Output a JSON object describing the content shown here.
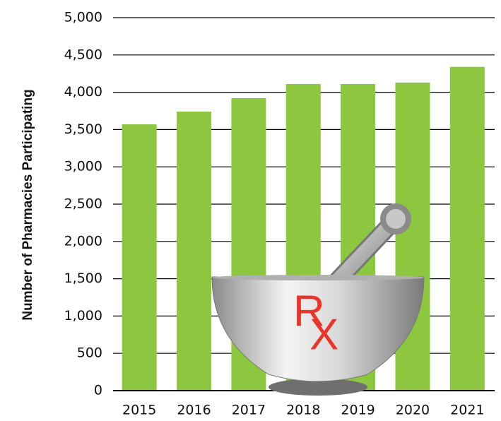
{
  "chart_data": {
    "type": "bar",
    "y_label": "Number of Pharmacies Participating",
    "categories": [
      "2015",
      "2016",
      "2017",
      "2018",
      "2019",
      "2020",
      "2021"
    ],
    "values": [
      3570,
      3740,
      3920,
      4110,
      4110,
      4130,
      4340
    ],
    "color": "#8dc63f",
    "ylim": [
      0,
      5000
    ],
    "yticks": [
      0,
      500,
      {
        "value": 1000,
        "label": "1,000"
      },
      {
        "value": 1500,
        "label": "1,500"
      },
      {
        "value": 2000,
        "label": "2,000"
      },
      {
        "value": 2500,
        "label": "2,500"
      },
      {
        "value": 3000,
        "label": "3,000"
      },
      {
        "value": 3500,
        "label": "3,500"
      },
      {
        "value": 4000,
        "label": "4,000"
      },
      {
        "value": 4500,
        "label": "4,500"
      },
      {
        "value": 5000,
        "label": "5,000"
      }
    ],
    "grid": true,
    "annotations": [
      "R",
      "X"
    ]
  }
}
